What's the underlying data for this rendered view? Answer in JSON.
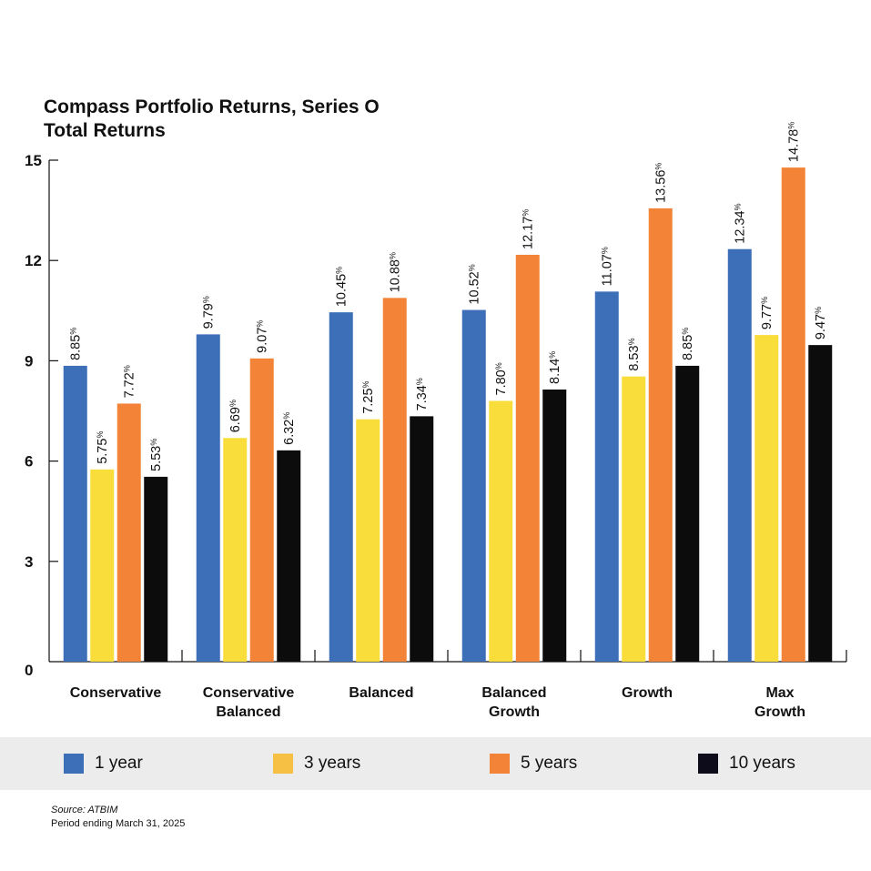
{
  "chart_data": {
    "type": "bar",
    "title": "Compass Portfolio Returns, Series O",
    "subtitle": "Total Returns",
    "ylabel": "",
    "xlabel": "",
    "ylim": [
      0,
      15
    ],
    "yticks": [
      0,
      3,
      6,
      9,
      12,
      15
    ],
    "grid": false,
    "categories": [
      [
        "Conservative"
      ],
      [
        "Conservative",
        "Balanced"
      ],
      [
        "Balanced"
      ],
      [
        "Balanced",
        "Growth"
      ],
      [
        "Growth"
      ],
      [
        "Max",
        "Growth"
      ]
    ],
    "value_suffix": "%",
    "series": [
      {
        "name": "1 year",
        "color": "#3d6eb8",
        "values": [
          8.85,
          9.79,
          10.45,
          10.52,
          11.07,
          12.34
        ]
      },
      {
        "name": "3 years",
        "color": "#f9dd3b",
        "values": [
          5.75,
          6.69,
          7.25,
          7.8,
          8.53,
          9.77
        ]
      },
      {
        "name": "5 years",
        "color": "#f38336",
        "values": [
          7.72,
          9.07,
          10.88,
          12.17,
          13.56,
          14.78
        ]
      },
      {
        "name": "10 years",
        "color": "#0c0c0c",
        "values": [
          5.53,
          6.32,
          7.34,
          8.14,
          8.85,
          9.47
        ]
      }
    ],
    "legend_position": "bottom"
  },
  "legend": {
    "items": [
      {
        "label": "1 year",
        "color": "#3d6eb8"
      },
      {
        "label": "3 years",
        "color": "#f5c044"
      },
      {
        "label": "5 years",
        "color": "#f38336"
      },
      {
        "label": "10 years",
        "color": "#0c0c1a"
      }
    ]
  },
  "footer": {
    "source": "Source: ATBIM",
    "period": "Period ending March 31, 2025"
  }
}
